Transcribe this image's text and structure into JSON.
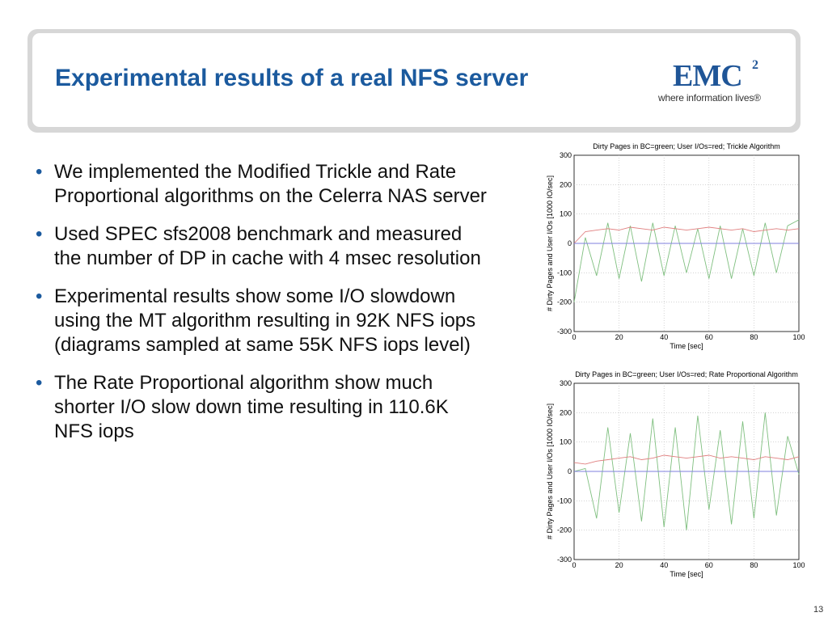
{
  "slide": {
    "title": "Experimental results of a real NFS server",
    "page_number": "13",
    "logo": {
      "main": "EMC",
      "superscript": "2",
      "tagline": "where information lives®"
    },
    "bullets": [
      "We implemented the Modified Trickle and Rate Proportional algorithms on the Celerra NAS server",
      "Used SPEC sfs2008 benchmark and measured the number of DP in cache with 4 msec resolution",
      "Experimental results show some I/O slowdown using the MT algorithm resulting in 92K NFS iops (diagrams sampled at same 55K NFS iops level)",
      "The Rate Proportional algorithm show much shorter I/O slow down time resulting in 110.6K NFS iops"
    ]
  },
  "chart_data": [
    {
      "type": "line",
      "title": "Dirty Pages in BC=green; User I/Os=red; Trickle Algorithm",
      "xlabel": "Time [sec]",
      "ylabel": "# Dirty Pages and User I/Os [1000 IO/sec]",
      "xlim": [
        0,
        100
      ],
      "ylim": [
        -300,
        300
      ],
      "xticks": [
        0,
        20,
        40,
        60,
        80,
        100
      ],
      "yticks": [
        -300,
        -200,
        -100,
        0,
        100,
        200,
        300
      ],
      "grid": true,
      "x": [
        0,
        5,
        10,
        15,
        20,
        25,
        30,
        35,
        40,
        45,
        50,
        55,
        60,
        65,
        70,
        75,
        80,
        85,
        90,
        95,
        100
      ],
      "series": [
        {
          "color": "#7fbf7f",
          "values": [
            -200,
            20,
            -110,
            70,
            -120,
            60,
            -130,
            70,
            -110,
            60,
            -100,
            50,
            -120,
            60,
            -120,
            50,
            -110,
            70,
            -100,
            60,
            80
          ]
        },
        {
          "color": "#e07f7f",
          "values": [
            0,
            40,
            45,
            50,
            45,
            55,
            50,
            45,
            55,
            50,
            45,
            50,
            55,
            50,
            45,
            50,
            40,
            45,
            50,
            45,
            50
          ]
        },
        {
          "color": "#7f7fdf",
          "values": [
            0,
            0,
            0,
            0,
            0,
            0,
            0,
            0,
            0,
            0,
            0,
            0,
            0,
            0,
            0,
            0,
            0,
            0,
            0,
            0,
            0
          ]
        }
      ]
    },
    {
      "type": "line",
      "title": "Dirty Pages in BC=green; User I/Os=red; Rate Proportional Algorithm",
      "xlabel": "Time [sec]",
      "ylabel": "# Dirty Pages and User I/Os [1000 IO/sec]",
      "xlim": [
        0,
        100
      ],
      "ylim": [
        -300,
        300
      ],
      "xticks": [
        0,
        20,
        40,
        60,
        80,
        100
      ],
      "yticks": [
        -300,
        -200,
        -100,
        0,
        100,
        200,
        300
      ],
      "grid": true,
      "x": [
        0,
        5,
        10,
        15,
        20,
        25,
        30,
        35,
        40,
        45,
        50,
        55,
        60,
        65,
        70,
        75,
        80,
        85,
        90,
        95,
        100
      ],
      "series": [
        {
          "color": "#7fbf7f",
          "values": [
            0,
            10,
            -160,
            150,
            -140,
            130,
            -170,
            180,
            -190,
            150,
            -200,
            190,
            -130,
            140,
            -180,
            170,
            -160,
            200,
            -150,
            120,
            -10
          ]
        },
        {
          "color": "#e07f7f",
          "values": [
            30,
            25,
            35,
            40,
            45,
            50,
            40,
            45,
            55,
            50,
            45,
            50,
            55,
            45,
            50,
            45,
            40,
            50,
            45,
            40,
            50
          ]
        },
        {
          "color": "#7f7fdf",
          "values": [
            0,
            0,
            0,
            0,
            0,
            0,
            0,
            0,
            0,
            0,
            0,
            0,
            0,
            0,
            0,
            0,
            0,
            0,
            0,
            0,
            0
          ]
        }
      ]
    }
  ]
}
